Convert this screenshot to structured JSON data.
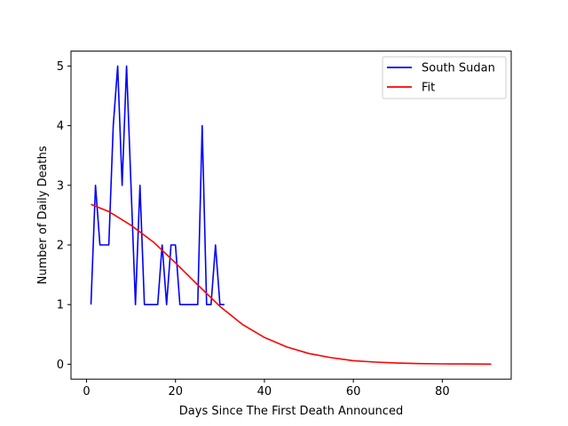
{
  "chart_data": {
    "type": "line",
    "title": "",
    "xlabel": "Days Since The First Death Announced",
    "ylabel": "Number of Daily Deaths",
    "xlim": [
      -3.5,
      95.5
    ],
    "ylim": [
      -0.25,
      5.25
    ],
    "xticks": [
      0,
      20,
      40,
      60,
      80
    ],
    "yticks": [
      0,
      1,
      2,
      3,
      4,
      5
    ],
    "grid": false,
    "legend": "top-right",
    "series": [
      {
        "name": "South Sudan",
        "color": "#0000ff",
        "x": [
          1,
          2,
          3,
          4,
          5,
          6,
          7,
          8,
          9,
          10,
          11,
          12,
          13,
          14,
          15,
          16,
          17,
          18,
          19,
          20,
          21,
          22,
          23,
          24,
          25,
          26,
          27,
          28,
          29,
          30,
          31
        ],
        "y": [
          1,
          3,
          2,
          2,
          2,
          4,
          5,
          3,
          5,
          3,
          1,
          3,
          1,
          1,
          1,
          1,
          2,
          1,
          2,
          2,
          1,
          1,
          1,
          1,
          1,
          4,
          1,
          1,
          2,
          1,
          1
        ]
      },
      {
        "name": "Fit",
        "color": "#ff0000",
        "x": [
          1,
          5,
          10,
          15,
          20,
          25,
          30,
          35,
          40,
          45,
          50,
          55,
          60,
          65,
          70,
          75,
          80,
          85,
          91
        ],
        "y": [
          2.68,
          2.56,
          2.33,
          2.05,
          1.7,
          1.33,
          0.97,
          0.67,
          0.45,
          0.29,
          0.18,
          0.11,
          0.06,
          0.035,
          0.02,
          0.01,
          0.006,
          0.004,
          0.002
        ]
      }
    ]
  }
}
